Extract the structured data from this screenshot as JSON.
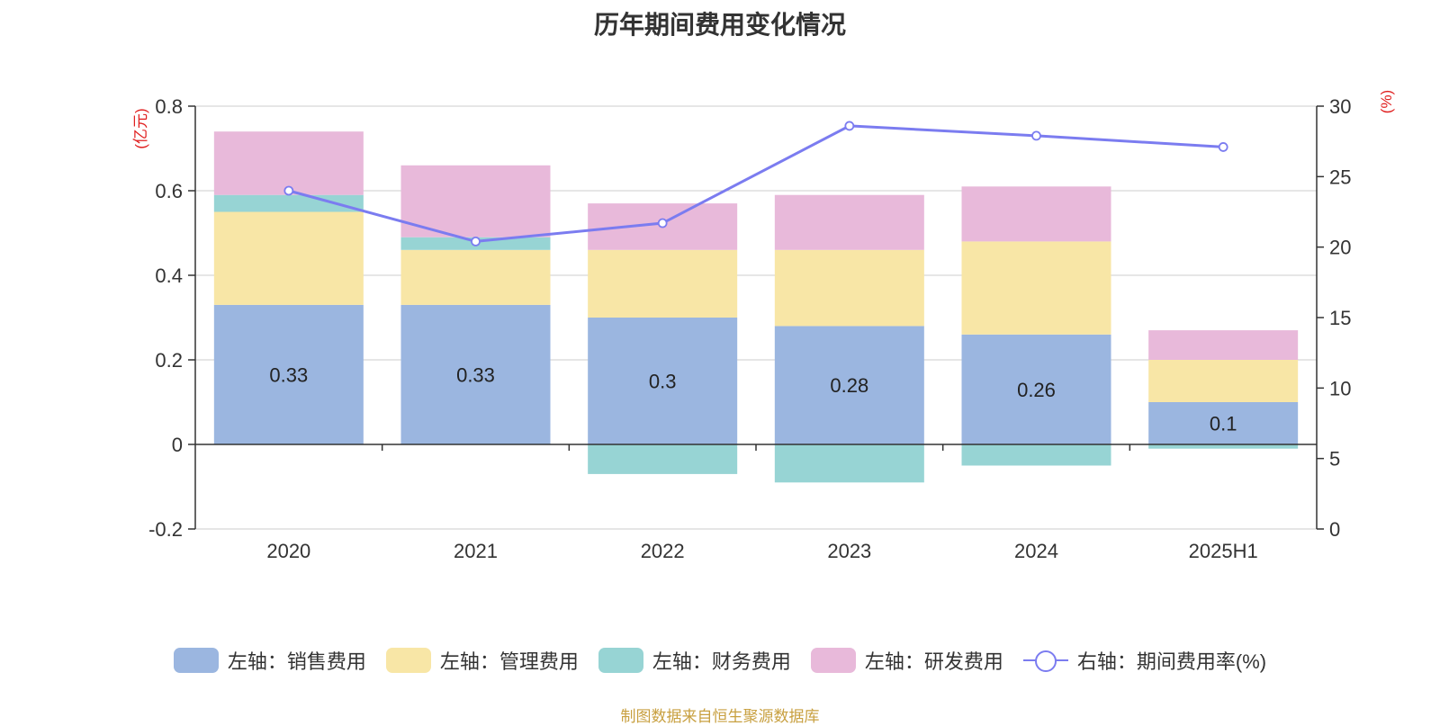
{
  "chart_data": {
    "type": "bar",
    "title": "历年期间费用变化情况",
    "categories": [
      "2020",
      "2021",
      "2022",
      "2023",
      "2024",
      "2025H1"
    ],
    "left_axis": {
      "unit_label": "(亿元)",
      "ylim": [
        -0.2,
        0.8
      ],
      "ticks": [
        -0.2,
        0,
        0.2,
        0.4,
        0.6,
        0.8
      ],
      "tick_labels": [
        "-0.2",
        "0",
        "0.2",
        "0.4",
        "0.6",
        "0.8"
      ]
    },
    "right_axis": {
      "unit_label": "(%)",
      "ylim": [
        0,
        30
      ],
      "ticks": [
        0,
        5,
        10,
        15,
        20,
        25,
        30
      ],
      "tick_labels": [
        "0",
        "5",
        "10",
        "15",
        "20",
        "25",
        "30"
      ]
    },
    "series": [
      {
        "name": "左轴：销售费用",
        "type": "bar",
        "axis": "left",
        "color": "#9bb6e0",
        "values": [
          0.33,
          0.33,
          0.3,
          0.28,
          0.26,
          0.1
        ],
        "data_labels": [
          "0.33",
          "0.33",
          "0.3",
          "0.28",
          "0.26",
          "0.1"
        ]
      },
      {
        "name": "左轴：管理费用",
        "type": "bar",
        "axis": "left",
        "color": "#f8e6a6",
        "values": [
          0.22,
          0.13,
          0.16,
          0.18,
          0.22,
          0.1
        ]
      },
      {
        "name": "左轴：财务费用",
        "type": "bar",
        "axis": "left",
        "color": "#97d4d4",
        "values": [
          0.04,
          0.03,
          -0.07,
          -0.09,
          -0.05,
          -0.01
        ]
      },
      {
        "name": "左轴：研发费用",
        "type": "bar",
        "axis": "left",
        "color": "#e8b9da",
        "values": [
          0.15,
          0.17,
          0.11,
          0.13,
          0.13,
          0.07
        ]
      },
      {
        "name": "右轴：期间费用率(%)",
        "type": "line",
        "axis": "right",
        "color": "#7b7cf0",
        "values": [
          24.0,
          20.4,
          21.7,
          28.6,
          27.9,
          27.1
        ]
      }
    ],
    "grid": true,
    "legend_position": "bottom"
  },
  "source": "制图数据来自恒生聚源数据库"
}
